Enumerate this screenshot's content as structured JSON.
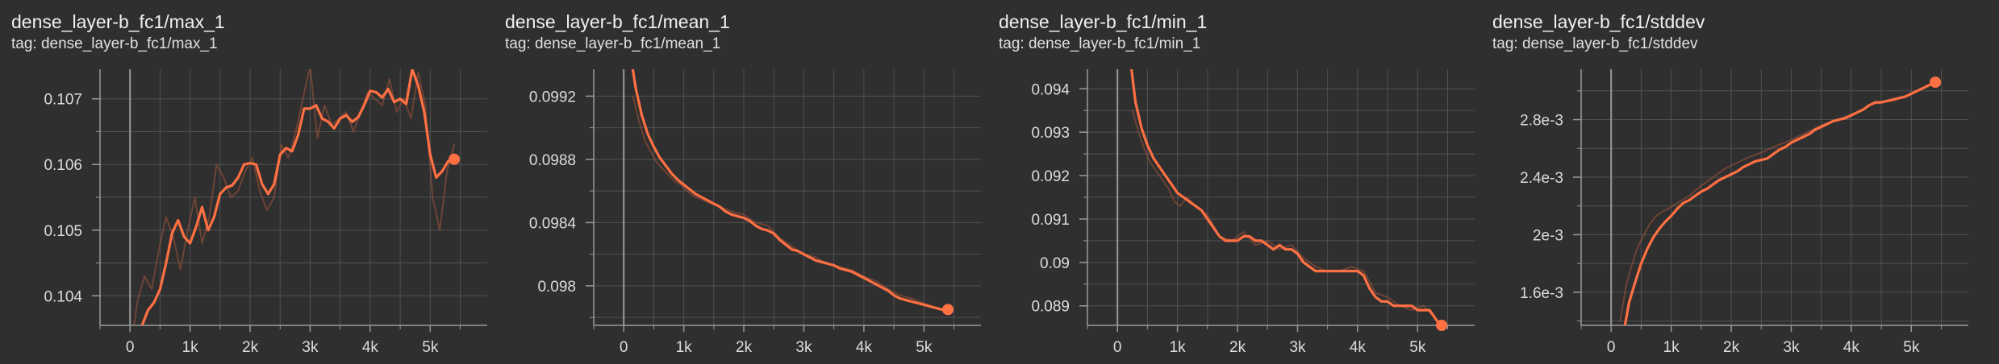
{
  "colors": {
    "background": "#2f2f2f",
    "grid": "#5a5a5a",
    "axis": "#9a9a9a",
    "line": "#ff7043",
    "raw_line": "#a0533a"
  },
  "cards": [
    {
      "title": "dense_layer-b_fc1/max_1",
      "tag": "tag: dense_layer-b_fc1/max_1"
    },
    {
      "title": "dense_layer-b_fc1/mean_1",
      "tag": "tag: dense_layer-b_fc1/mean_1"
    },
    {
      "title": "dense_layer-b_fc1/min_1",
      "tag": "tag: dense_layer-b_fc1/min_1"
    },
    {
      "title": "dense_layer-b_fc1/stddev",
      "tag": "tag: dense_layer-b_fc1/stddev"
    }
  ],
  "chart_data": [
    {
      "type": "line",
      "title": "dense_layer-b_fc1/max_1",
      "xlim": [
        -500,
        5950
      ],
      "ylim": [
        0.10355,
        0.10745
      ],
      "grid": true,
      "x_ticks": [
        0,
        1000,
        2000,
        3000,
        4000,
        5000
      ],
      "x_tick_labels": [
        "0",
        "1k",
        "2k",
        "3k",
        "4k",
        "5k"
      ],
      "y_ticks": [
        0.104,
        0.105,
        0.106,
        0.107
      ],
      "y_tick_labels": [
        "0.104",
        "0.105",
        "0.106",
        "0.107"
      ],
      "series": [
        {
          "kind": "raw",
          "x": [
            0,
            120,
            240,
            360,
            480,
            600,
            720,
            840,
            960,
            1080,
            1200,
            1320,
            1440,
            1560,
            1680,
            1800,
            1920,
            2040,
            2160,
            2280,
            2400,
            2520,
            2640,
            2760,
            2880,
            3000,
            3120,
            3240,
            3360,
            3480,
            3600,
            3720,
            3840,
            3960,
            4080,
            4200,
            4320,
            4440,
            4560,
            4680,
            4800,
            4920,
            5040,
            5160,
            5280,
            5400
          ],
          "y": [
            0.1031,
            0.1039,
            0.1043,
            0.1041,
            0.1047,
            0.1052,
            0.1049,
            0.1044,
            0.105,
            0.1055,
            0.1048,
            0.1052,
            0.106,
            0.1058,
            0.1055,
            0.1056,
            0.1059,
            0.1061,
            0.1056,
            0.1053,
            0.1055,
            0.1063,
            0.1061,
            0.1065,
            0.107,
            0.1075,
            0.1064,
            0.1069,
            0.1066,
            0.1067,
            0.1068,
            0.1065,
            0.1068,
            0.1071,
            0.107,
            0.1069,
            0.1073,
            0.1068,
            0.107,
            0.1067,
            0.1074,
            0.1069,
            0.1055,
            0.105,
            0.1059,
            0.1063
          ]
        },
        {
          "kind": "smoothed",
          "x": [
            200,
            300,
            400,
            500,
            600,
            700,
            800,
            900,
            1000,
            1100,
            1200,
            1300,
            1400,
            1500,
            1600,
            1700,
            1800,
            1900,
            2000,
            2100,
            2200,
            2300,
            2400,
            2500,
            2600,
            2700,
            2800,
            2900,
            3000,
            3100,
            3200,
            3300,
            3400,
            3500,
            3600,
            3700,
            3800,
            3900,
            4000,
            4100,
            4200,
            4300,
            4400,
            4500,
            4600,
            4700,
            4800,
            4900,
            5000,
            5100,
            5200,
            5300,
            5400
          ],
          "y": [
            0.10355,
            0.10378,
            0.1039,
            0.1041,
            0.1045,
            0.10495,
            0.10515,
            0.1049,
            0.1048,
            0.10505,
            0.10535,
            0.105,
            0.1052,
            0.10555,
            0.10565,
            0.10568,
            0.1058,
            0.106,
            0.10602,
            0.106,
            0.1057,
            0.10555,
            0.1057,
            0.10615,
            0.10625,
            0.1062,
            0.10645,
            0.10685,
            0.10685,
            0.1069,
            0.1067,
            0.10665,
            0.10655,
            0.1067,
            0.10675,
            0.10665,
            0.10672,
            0.1069,
            0.10712,
            0.1071,
            0.10702,
            0.10715,
            0.10695,
            0.107,
            0.10692,
            0.10745,
            0.1072,
            0.1068,
            0.10615,
            0.1058,
            0.1059,
            0.10605,
            0.1061
          ]
        }
      ],
      "last_point": {
        "x": 5400,
        "y": 0.10608
      }
    },
    {
      "type": "line",
      "title": "dense_layer-b_fc1/mean_1",
      "xlim": [
        -500,
        5950
      ],
      "ylim": [
        0.09775,
        0.09937
      ],
      "grid": true,
      "x_ticks": [
        0,
        1000,
        2000,
        3000,
        4000,
        5000
      ],
      "x_tick_labels": [
        "0",
        "1k",
        "2k",
        "3k",
        "4k",
        "5k"
      ],
      "y_ticks": [
        0.098,
        0.0984,
        0.0988,
        0.0992
      ],
      "y_tick_labels": [
        "0.098",
        "0.0984",
        "0.0988",
        "0.0992"
      ],
      "series": [
        {
          "kind": "raw",
          "x": [
            150,
            250,
            350,
            450,
            550,
            650,
            750,
            850,
            950,
            1050,
            1200,
            1400,
            1600,
            1800,
            2000,
            2200,
            2400,
            2600,
            2800,
            3000,
            3200,
            3400,
            3600,
            3800,
            4000,
            4200,
            4400,
            4600,
            4800,
            5000,
            5200,
            5400
          ],
          "y": [
            0.0992,
            0.09905,
            0.09892,
            0.09885,
            0.09878,
            0.09874,
            0.0987,
            0.09866,
            0.09864,
            0.0986,
            0.09856,
            0.09853,
            0.0985,
            0.09847,
            0.09845,
            0.0984,
            0.09838,
            0.0983,
            0.09825,
            0.0982,
            0.09818,
            0.09814,
            0.09812,
            0.0981,
            0.09806,
            0.09803,
            0.09798,
            0.09794,
            0.09792,
            0.09789,
            0.09786,
            0.09785
          ]
        },
        {
          "kind": "smoothed",
          "x": [
            150,
            200,
            300,
            400,
            500,
            600,
            700,
            800,
            900,
            1000,
            1100,
            1200,
            1300,
            1400,
            1500,
            1600,
            1700,
            1800,
            1900,
            2000,
            2100,
            2200,
            2300,
            2400,
            2500,
            2600,
            2700,
            2800,
            2900,
            3000,
            3100,
            3200,
            3300,
            3400,
            3500,
            3600,
            3700,
            3800,
            3900,
            4000,
            4100,
            4200,
            4300,
            4400,
            4500,
            4600,
            4700,
            4800,
            4900,
            5000,
            5100,
            5200,
            5300,
            5400
          ],
          "y": [
            0.09937,
            0.09925,
            0.09908,
            0.09896,
            0.09888,
            0.09881,
            0.09876,
            0.09871,
            0.09867,
            0.09864,
            0.09861,
            0.09858,
            0.09856,
            0.09854,
            0.09852,
            0.0985,
            0.09847,
            0.09845,
            0.09844,
            0.09843,
            0.09841,
            0.09838,
            0.09836,
            0.09835,
            0.09833,
            0.09829,
            0.09826,
            0.09823,
            0.09822,
            0.0982,
            0.09818,
            0.09816,
            0.09815,
            0.09814,
            0.09813,
            0.09811,
            0.0981,
            0.09809,
            0.09807,
            0.09805,
            0.09803,
            0.09801,
            0.09799,
            0.09797,
            0.09794,
            0.09792,
            0.09791,
            0.0979,
            0.09789,
            0.09788,
            0.09787,
            0.09786,
            0.09785,
            0.09785
          ]
        }
      ],
      "last_point": {
        "x": 5400,
        "y": 0.09785
      }
    },
    {
      "type": "line",
      "title": "dense_layer-b_fc1/min_1",
      "xlim": [
        -500,
        5950
      ],
      "ylim": [
        0.08855,
        0.09445
      ],
      "grid": true,
      "x_ticks": [
        0,
        1000,
        2000,
        3000,
        4000,
        5000
      ],
      "x_tick_labels": [
        "0",
        "1k",
        "2k",
        "3k",
        "4k",
        "5k"
      ],
      "y_ticks": [
        0.089,
        0.09,
        0.091,
        0.092,
        0.093,
        0.094
      ],
      "y_tick_labels": [
        "0.089",
        "0.09",
        "0.091",
        "0.092",
        "0.093",
        "0.094"
      ],
      "series": [
        {
          "kind": "raw",
          "x": [
            250,
            350,
            450,
            550,
            650,
            750,
            850,
            950,
            1050,
            1150,
            1300,
            1500,
            1700,
            1900,
            2100,
            2300,
            2500,
            2700,
            2900,
            3100,
            3300,
            3500,
            3700,
            3900,
            4100,
            4300,
            4500,
            4700,
            4900,
            5100,
            5300,
            5400
          ],
          "y": [
            0.0935,
            0.093,
            0.0926,
            0.0923,
            0.0921,
            0.0919,
            0.0917,
            0.0914,
            0.0913,
            0.0915,
            0.0913,
            0.0911,
            0.0906,
            0.0905,
            0.0907,
            0.0904,
            0.0905,
            0.0903,
            0.0904,
            0.0901,
            0.0899,
            0.0898,
            0.0898,
            0.0899,
            0.0898,
            0.0893,
            0.0892,
            0.089,
            0.0889,
            0.089,
            0.0887,
            0.0885
          ]
        },
        {
          "kind": "smoothed",
          "x": [
            230,
            300,
            400,
            500,
            600,
            700,
            800,
            900,
            1000,
            1100,
            1200,
            1300,
            1400,
            1500,
            1600,
            1700,
            1800,
            1900,
            2000,
            2100,
            2200,
            2300,
            2400,
            2500,
            2600,
            2700,
            2800,
            2900,
            3000,
            3100,
            3200,
            3300,
            3400,
            3500,
            3600,
            3700,
            3800,
            3900,
            4000,
            4100,
            4200,
            4300,
            4400,
            4500,
            4600,
            4700,
            4800,
            4900,
            5000,
            5100,
            5200,
            5300,
            5400
          ],
          "y": [
            0.0945,
            0.0937,
            0.0931,
            0.0927,
            0.0924,
            0.0922,
            0.092,
            0.0918,
            0.0916,
            0.0915,
            0.0914,
            0.0913,
            0.0912,
            0.091,
            0.0908,
            0.0906,
            0.0905,
            0.0905,
            0.0905,
            0.0906,
            0.0906,
            0.0905,
            0.0905,
            0.0904,
            0.0903,
            0.0904,
            0.0903,
            0.0903,
            0.0902,
            0.09,
            0.0899,
            0.0898,
            0.0898,
            0.0898,
            0.0898,
            0.0898,
            0.0898,
            0.0898,
            0.0898,
            0.0897,
            0.0894,
            0.0892,
            0.0891,
            0.0891,
            0.089,
            0.089,
            0.089,
            0.089,
            0.0889,
            0.0889,
            0.0889,
            0.0887,
            0.0885
          ]
        }
      ],
      "last_point": {
        "x": 5400,
        "y": 0.08855
      }
    },
    {
      "type": "line",
      "title": "dense_layer-b_fc1/stddev",
      "xlim": [
        -500,
        5950
      ],
      "ylim": [
        0.00137,
        0.00315
      ],
      "grid": true,
      "x_ticks": [
        0,
        1000,
        2000,
        3000,
        4000,
        5000
      ],
      "x_tick_labels": [
        "0",
        "1k",
        "2k",
        "3k",
        "4k",
        "5k"
      ],
      "y_ticks": [
        0.0016,
        0.002,
        0.0024,
        0.0028
      ],
      "y_tick_labels": [
        "1.6e-3",
        "2e-3",
        "2.4e-3",
        "2.8e-3"
      ],
      "series": [
        {
          "kind": "raw",
          "x": [
            150,
            250,
            350,
            450,
            550,
            650,
            750,
            850,
            950,
            1100,
            1300,
            1500,
            1700,
            1900,
            2100,
            2300,
            2500,
            2700,
            2900,
            3100,
            3300,
            3500,
            3700,
            3900,
            4100,
            4300,
            4500,
            4700,
            4900,
            5100,
            5300,
            5400
          ],
          "y": [
            0.0014,
            0.00165,
            0.0018,
            0.00192,
            0.002,
            0.00208,
            0.00213,
            0.00216,
            0.00218,
            0.00222,
            0.00227,
            0.00234,
            0.0024,
            0.00246,
            0.0025,
            0.00254,
            0.00257,
            0.00261,
            0.00264,
            0.00268,
            0.00272,
            0.00276,
            0.00279,
            0.00282,
            0.00285,
            0.0029,
            0.00292,
            0.00293,
            0.00296,
            0.003,
            0.00304,
            0.00306
          ]
        },
        {
          "kind": "smoothed",
          "x": [
            230,
            300,
            400,
            500,
            600,
            700,
            800,
            900,
            1000,
            1100,
            1200,
            1300,
            1400,
            1500,
            1600,
            1700,
            1800,
            1900,
            2000,
            2100,
            2200,
            2300,
            2400,
            2500,
            2600,
            2700,
            2800,
            2900,
            3000,
            3100,
            3200,
            3300,
            3400,
            3500,
            3600,
            3700,
            3800,
            3900,
            4000,
            4100,
            4200,
            4300,
            4400,
            4500,
            4600,
            4700,
            4800,
            4900,
            5000,
            5100,
            5200,
            5300,
            5400
          ],
          "y": [
            0.00137,
            0.00153,
            0.00167,
            0.0018,
            0.0019,
            0.00198,
            0.00204,
            0.00209,
            0.00213,
            0.00218,
            0.00222,
            0.00224,
            0.00227,
            0.0023,
            0.00232,
            0.00235,
            0.00238,
            0.0024,
            0.00242,
            0.00244,
            0.00247,
            0.00249,
            0.00251,
            0.00252,
            0.00253,
            0.00256,
            0.00259,
            0.00261,
            0.00264,
            0.00266,
            0.00268,
            0.0027,
            0.00273,
            0.00275,
            0.00277,
            0.00279,
            0.0028,
            0.00281,
            0.00283,
            0.00285,
            0.00287,
            0.0029,
            0.00292,
            0.00292,
            0.00293,
            0.00294,
            0.00295,
            0.00296,
            0.00298,
            0.003,
            0.00302,
            0.00304,
            0.00306
          ]
        }
      ],
      "last_point": {
        "x": 5400,
        "y": 0.00306
      }
    }
  ]
}
